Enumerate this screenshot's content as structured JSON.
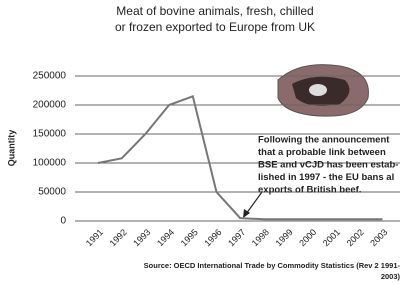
{
  "chart_data": {
    "type": "line",
    "title": [
      "Meat of bovine animals, fresh, chilled",
      "or frozen exported to Europe from UK"
    ],
    "y_label": "Quantity",
    "categories": [
      "1991",
      "1992",
      "1993",
      "1994",
      "1995",
      "1996",
      "1997",
      "1998",
      "1999",
      "2000",
      "2001",
      "2002",
      "2003"
    ],
    "values": [
      100000,
      108000,
      150000,
      200000,
      215000,
      50000,
      5000,
      3000,
      3000,
      3000,
      3000,
      3000,
      3000
    ],
    "color": "#777777",
    "ylim": [
      0,
      250000
    ],
    "yticks": [
      0,
      50000,
      100000,
      150000,
      200000,
      250000
    ],
    "grid": true,
    "annotation": [
      "Following the announcement",
      "that a probable link between",
      "BSE and vCJD has been estab-",
      "lished in 1997 - the EU bans al",
      "exports of British beef."
    ],
    "source": [
      "Source: OECD International Trade by Commodity Statistics (Rev 2 1991-",
      "2003)"
    ]
  }
}
